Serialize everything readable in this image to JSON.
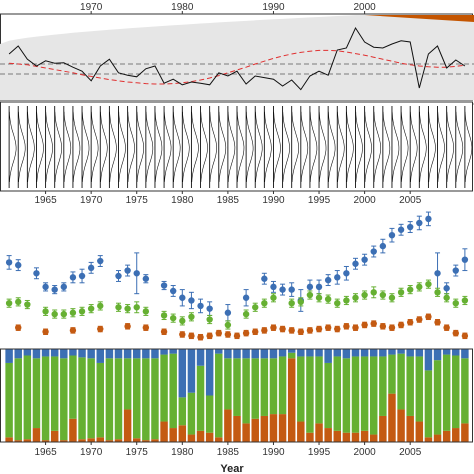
{
  "chart_data": [
    {
      "type": "line",
      "x_range": [
        1960,
        2012
      ],
      "top_ticks": [
        "1970",
        "1980",
        "1990",
        "2000"
      ],
      "tick_years": [
        1970,
        1980,
        1990,
        2000
      ],
      "grid": false,
      "years": [
        1961,
        1962,
        1963,
        1964,
        1965,
        1966,
        1967,
        1968,
        1969,
        1970,
        1971,
        1972,
        1973,
        1974,
        1975,
        1976,
        1977,
        1978,
        1979,
        1980,
        1981,
        1982,
        1983,
        1984,
        1985,
        1986,
        1987,
        1988,
        1989,
        1990,
        1991,
        1992,
        1993,
        1994,
        1995,
        1996,
        1997,
        1998,
        1999,
        2000,
        2001,
        2002,
        2003,
        2004,
        2005,
        2006,
        2007,
        2008,
        2009,
        2010,
        2011
      ],
      "series": [
        {
          "role": "observed",
          "color": "#111111",
          "values": [
            0.25,
            0.45,
            0.12,
            -0.05,
            0.08,
            0.02,
            0.03,
            -0.08,
            -0.18,
            -0.42,
            -0.05,
            0.12,
            -0.22,
            -0.28,
            -0.32,
            -0.12,
            -0.05,
            -0.48,
            -0.38,
            -0.52,
            -0.45,
            -0.48,
            -0.52,
            -0.22,
            -0.3,
            -0.18,
            -0.5,
            -0.3,
            -0.34,
            -0.38,
            -0.55,
            -0.4,
            -0.64,
            -0.3,
            -0.18,
            -0.28,
            0.35,
            0.4,
            0.9,
            0.55,
            0.42,
            0.4,
            0.5,
            0.58,
            0.55,
            -0.6,
            0.25,
            0.45,
            -0.1,
            0.1,
            -0.05
          ]
        },
        {
          "role": "smooth",
          "color": "#e03030",
          "values": [
            0.02,
            0.0,
            -0.02,
            -0.06,
            -0.1,
            -0.14,
            -0.18,
            -0.22,
            -0.27,
            -0.31,
            -0.35,
            -0.39,
            -0.42,
            -0.45,
            -0.47,
            -0.49,
            -0.5,
            -0.5,
            -0.49,
            -0.47,
            -0.44,
            -0.4,
            -0.35,
            -0.29,
            -0.22,
            -0.15,
            -0.08,
            0.0,
            0.07,
            0.14,
            0.2,
            0.25,
            0.29,
            0.32,
            0.34,
            0.34,
            0.33,
            0.3,
            0.26,
            0.22,
            0.17,
            0.12,
            0.07,
            0.02,
            -0.02,
            -0.05,
            -0.07,
            -0.08,
            -0.08,
            -0.06,
            -0.03
          ]
        }
      ],
      "hlines": [
        0.0,
        -0.25,
        -1.0
      ],
      "envelope_color": "#e6e6e6",
      "accent_color": "#c45500"
    },
    {
      "type": "density-ridges",
      "x_range": [
        1960,
        2012
      ],
      "bottom_ticks": [
        "1965",
        "1970",
        "1975",
        "1980",
        "1985",
        "1990",
        "1995",
        "2000",
        "2005"
      ],
      "tick_years": [
        1965,
        1970,
        1975,
        1980,
        1985,
        1990,
        1995,
        2000,
        2005
      ],
      "first_year": 1961,
      "last_year": 2011,
      "color": "#111111"
    },
    {
      "type": "scatter",
      "x_range": [
        1960,
        2012
      ],
      "y_range": [
        0,
        1
      ],
      "series": [
        {
          "color": "#3c6fb4",
          "points": [
            [
              1961,
              0.6,
              0.05
            ],
            [
              1962,
              0.58,
              0.04
            ],
            [
              1964,
              0.52,
              0.04
            ],
            [
              1965,
              0.42,
              0.03
            ],
            [
              1966,
              0.4,
              0.03
            ],
            [
              1967,
              0.42,
              0.03
            ],
            [
              1968,
              0.49,
              0.04
            ],
            [
              1969,
              0.5,
              0.05
            ],
            [
              1970,
              0.56,
              0.04
            ],
            [
              1971,
              0.61,
              0.04
            ],
            [
              1973,
              0.5,
              0.04
            ],
            [
              1974,
              0.54,
              0.04
            ],
            [
              1975,
              0.52,
              0.15
            ],
            [
              1976,
              0.48,
              0.03
            ],
            [
              1978,
              0.43,
              0.03
            ],
            [
              1979,
              0.39,
              0.04
            ],
            [
              1980,
              0.34,
              0.06
            ],
            [
              1981,
              0.32,
              0.06
            ],
            [
              1982,
              0.28,
              0.05
            ],
            [
              1983,
              0.26,
              0.05
            ],
            [
              1985,
              0.23,
              0.06
            ],
            [
              1987,
              0.34,
              0.06
            ],
            [
              1989,
              0.48,
              0.04
            ],
            [
              1990,
              0.42,
              0.04
            ],
            [
              1991,
              0.4,
              0.04
            ],
            [
              1992,
              0.4,
              0.05
            ],
            [
              1993,
              0.32,
              0.08
            ],
            [
              1994,
              0.42,
              0.05
            ],
            [
              1995,
              0.42,
              0.05
            ],
            [
              1996,
              0.47,
              0.04
            ],
            [
              1997,
              0.49,
              0.05
            ],
            [
              1998,
              0.52,
              0.05
            ],
            [
              1999,
              0.59,
              0.04
            ],
            [
              2000,
              0.62,
              0.04
            ],
            [
              2001,
              0.68,
              0.04
            ],
            [
              2002,
              0.72,
              0.05
            ],
            [
              2003,
              0.8,
              0.05
            ],
            [
              2004,
              0.84,
              0.04
            ],
            [
              2005,
              0.86,
              0.04
            ],
            [
              2006,
              0.89,
              0.05
            ],
            [
              2007,
              0.92,
              0.05
            ],
            [
              2008,
              0.52,
              0.15
            ],
            [
              2009,
              0.41,
              0.04
            ],
            [
              2010,
              0.54,
              0.04
            ],
            [
              2011,
              0.62,
              0.08
            ]
          ]
        },
        {
          "color": "#66b032",
          "points": [
            [
              1961,
              0.3,
              0.03
            ],
            [
              1962,
              0.31,
              0.03
            ],
            [
              1963,
              0.29,
              0.03
            ],
            [
              1965,
              0.24,
              0.03
            ],
            [
              1966,
              0.22,
              0.03
            ],
            [
              1967,
              0.22,
              0.03
            ],
            [
              1968,
              0.23,
              0.03
            ],
            [
              1969,
              0.24,
              0.03
            ],
            [
              1970,
              0.26,
              0.03
            ],
            [
              1971,
              0.28,
              0.03
            ],
            [
              1973,
              0.27,
              0.03
            ],
            [
              1974,
              0.26,
              0.03
            ],
            [
              1975,
              0.27,
              0.04
            ],
            [
              1976,
              0.24,
              0.03
            ],
            [
              1978,
              0.21,
              0.03
            ],
            [
              1979,
              0.19,
              0.03
            ],
            [
              1980,
              0.17,
              0.03
            ],
            [
              1981,
              0.2,
              0.03
            ],
            [
              1983,
              0.18,
              0.03
            ],
            [
              1985,
              0.14,
              0.03
            ],
            [
              1987,
              0.22,
              0.03
            ],
            [
              1988,
              0.27,
              0.03
            ],
            [
              1989,
              0.3,
              0.03
            ],
            [
              1990,
              0.34,
              0.03
            ],
            [
              1992,
              0.3,
              0.03
            ],
            [
              1993,
              0.31,
              0.03
            ],
            [
              1994,
              0.36,
              0.03
            ],
            [
              1995,
              0.34,
              0.03
            ],
            [
              1996,
              0.33,
              0.03
            ],
            [
              1997,
              0.3,
              0.03
            ],
            [
              1998,
              0.32,
              0.03
            ],
            [
              1999,
              0.34,
              0.03
            ],
            [
              2000,
              0.36,
              0.03
            ],
            [
              2001,
              0.38,
              0.04
            ],
            [
              2002,
              0.36,
              0.03
            ],
            [
              2003,
              0.34,
              0.03
            ],
            [
              2004,
              0.38,
              0.03
            ],
            [
              2005,
              0.4,
              0.03
            ],
            [
              2006,
              0.42,
              0.03
            ],
            [
              2007,
              0.44,
              0.03
            ],
            [
              2008,
              0.38,
              0.03
            ],
            [
              2009,
              0.34,
              0.03
            ],
            [
              2010,
              0.3,
              0.03
            ],
            [
              2011,
              0.32,
              0.03
            ]
          ]
        },
        {
          "color": "#c45a12",
          "points": [
            [
              1962,
              0.12,
              0.02
            ],
            [
              1965,
              0.09,
              0.02
            ],
            [
              1968,
              0.1,
              0.02
            ],
            [
              1971,
              0.11,
              0.02
            ],
            [
              1974,
              0.13,
              0.02
            ],
            [
              1976,
              0.12,
              0.02
            ],
            [
              1978,
              0.09,
              0.02
            ],
            [
              1980,
              0.07,
              0.02
            ],
            [
              1981,
              0.06,
              0.02
            ],
            [
              1982,
              0.05,
              0.02
            ],
            [
              1983,
              0.06,
              0.02
            ],
            [
              1984,
              0.08,
              0.02
            ],
            [
              1985,
              0.07,
              0.02
            ],
            [
              1986,
              0.06,
              0.02
            ],
            [
              1987,
              0.08,
              0.02
            ],
            [
              1988,
              0.09,
              0.02
            ],
            [
              1989,
              0.1,
              0.02
            ],
            [
              1990,
              0.12,
              0.02
            ],
            [
              1991,
              0.11,
              0.02
            ],
            [
              1992,
              0.1,
              0.02
            ],
            [
              1993,
              0.09,
              0.02
            ],
            [
              1994,
              0.1,
              0.02
            ],
            [
              1995,
              0.11,
              0.02
            ],
            [
              1996,
              0.12,
              0.02
            ],
            [
              1997,
              0.11,
              0.02
            ],
            [
              1998,
              0.13,
              0.02
            ],
            [
              1999,
              0.12,
              0.02
            ],
            [
              2000,
              0.14,
              0.02
            ],
            [
              2001,
              0.15,
              0.02
            ],
            [
              2002,
              0.13,
              0.02
            ],
            [
              2003,
              0.12,
              0.02
            ],
            [
              2004,
              0.14,
              0.02
            ],
            [
              2005,
              0.16,
              0.02
            ],
            [
              2006,
              0.18,
              0.02
            ],
            [
              2007,
              0.2,
              0.02
            ],
            [
              2008,
              0.16,
              0.02
            ],
            [
              2009,
              0.12,
              0.02
            ],
            [
              2010,
              0.08,
              0.02
            ],
            [
              2011,
              0.06,
              0.02
            ]
          ]
        }
      ]
    },
    {
      "type": "bar",
      "stacked": true,
      "normalized": true,
      "x_range": [
        1960,
        2012
      ],
      "bottom_ticks": [
        "1965",
        "1970",
        "1975",
        "1980",
        "1985",
        "1990",
        "1995",
        "2000",
        "2005"
      ],
      "tick_years": [
        1965,
        1970,
        1975,
        1980,
        1985,
        1990,
        1995,
        2000,
        2005
      ],
      "xlabel": "Year",
      "colors": [
        "#c45a12",
        "#66b032",
        "#3c6fb4"
      ],
      "years": [
        1961,
        1962,
        1963,
        1964,
        1965,
        1966,
        1967,
        1968,
        1969,
        1970,
        1971,
        1972,
        1973,
        1974,
        1975,
        1976,
        1977,
        1978,
        1979,
        1980,
        1981,
        1982,
        1983,
        1984,
        1985,
        1986,
        1987,
        1988,
        1989,
        1990,
        1991,
        1992,
        1993,
        1994,
        1995,
        1996,
        1997,
        1998,
        1999,
        2000,
        2001,
        2002,
        2003,
        2004,
        2005,
        2006,
        2007,
        2008,
        2009,
        2010,
        2011
      ],
      "brown": [
        0.05,
        0.02,
        0.03,
        0.15,
        0.02,
        0.12,
        0.02,
        0.25,
        0.03,
        0.04,
        0.05,
        0.02,
        0.03,
        0.35,
        0.04,
        0.02,
        0.03,
        0.22,
        0.15,
        0.18,
        0.08,
        0.12,
        0.1,
        0.05,
        0.35,
        0.28,
        0.2,
        0.25,
        0.28,
        0.3,
        0.3,
        0.9,
        0.22,
        0.1,
        0.2,
        0.15,
        0.12,
        0.1,
        0.1,
        0.12,
        0.08,
        0.28,
        0.52,
        0.35,
        0.28,
        0.22,
        0.05,
        0.08,
        0.12,
        0.15,
        0.2
      ],
      "green": [
        0.8,
        0.88,
        0.9,
        0.75,
        0.9,
        0.8,
        0.88,
        0.68,
        0.88,
        0.86,
        0.8,
        0.88,
        0.87,
        0.55,
        0.86,
        0.88,
        0.87,
        0.72,
        0.8,
        0.3,
        0.45,
        0.7,
        0.4,
        0.9,
        0.55,
        0.62,
        0.7,
        0.65,
        0.62,
        0.6,
        0.62,
        0.06,
        0.7,
        0.82,
        0.72,
        0.7,
        0.8,
        0.8,
        0.82,
        0.8,
        0.84,
        0.64,
        0.42,
        0.6,
        0.64,
        0.7,
        0.72,
        0.8,
        0.82,
        0.78,
        0.7
      ]
    }
  ]
}
